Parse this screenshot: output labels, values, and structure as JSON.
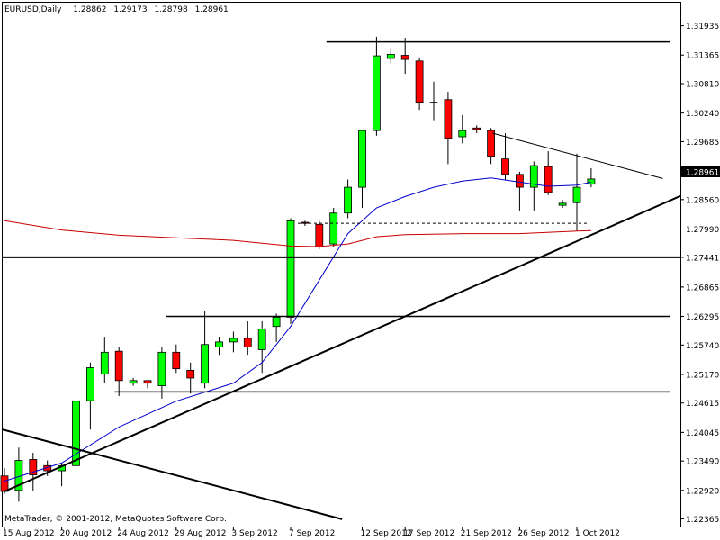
{
  "header": {
    "symbol": "EURUSD,Daily",
    "open": "1.28862",
    "high": "1.29173",
    "low": "1.28798",
    "close": "1.28961"
  },
  "watermark": "MetaTrader, © 2001-2012, MetaQuotes Software Corp.",
  "current_price_label": "1.28961",
  "colors": {
    "bull": "#00ff00",
    "bear": "#ff0000",
    "ma_fast": "#0000cc",
    "ma_slow": "#cc0000",
    "lines": "#000000",
    "background": "#ffffff"
  },
  "chart_data": {
    "type": "candlestick",
    "ylim": [
      1.2234,
      1.3212
    ],
    "y_ticks": [
      "1.31935",
      "1.31365",
      "1.30810",
      "1.30240",
      "1.29685",
      "1.29115",
      "1.28560",
      "1.27990",
      "1.27441",
      "1.26865",
      "1.26295",
      "1.25740",
      "1.25170",
      "1.24615",
      "1.24045",
      "1.23490",
      "1.22920",
      "1.22365"
    ],
    "x_tick_labels": [
      {
        "index": 0,
        "label": "15 Aug 2012"
      },
      {
        "index": 4,
        "label": "20 Aug 2012"
      },
      {
        "index": 8,
        "label": "24 Aug 2012"
      },
      {
        "index": 12,
        "label": "29 Aug 2012"
      },
      {
        "index": 16,
        "label": "3 Sep 2012"
      },
      {
        "index": 20,
        "label": "7 Sep 2012"
      },
      {
        "index": 25,
        "label": "12 Sep 2012"
      },
      {
        "index": 28,
        "label": "17 Sep 2012"
      },
      {
        "index": 32,
        "label": "21 Sep 2012"
      },
      {
        "index": 36,
        "label": "26 Sep 2012"
      },
      {
        "index": 40,
        "label": "1 Oct 2012"
      }
    ],
    "candles": [
      {
        "o": 1.232,
        "h": 1.2335,
        "l": 1.2285,
        "c": 1.229
      },
      {
        "o": 1.2292,
        "h": 1.2375,
        "l": 1.227,
        "c": 1.235
      },
      {
        "o": 1.2352,
        "h": 1.2365,
        "l": 1.229,
        "c": 1.2322
      },
      {
        "o": 1.234,
        "h": 1.235,
        "l": 1.232,
        "c": 1.233
      },
      {
        "o": 1.233,
        "h": 1.2345,
        "l": 1.23,
        "c": 1.234
      },
      {
        "o": 1.234,
        "h": 1.247,
        "l": 1.233,
        "c": 1.2465
      },
      {
        "o": 1.2466,
        "h": 1.254,
        "l": 1.241,
        "c": 1.253
      },
      {
        "o": 1.2518,
        "h": 1.259,
        "l": 1.25,
        "c": 1.256
      },
      {
        "o": 1.2562,
        "h": 1.257,
        "l": 1.2475,
        "c": 1.2505
      },
      {
        "o": 1.25,
        "h": 1.251,
        "l": 1.2495,
        "c": 1.2505
      },
      {
        "o": 1.2505,
        "h": 1.2505,
        "l": 1.249,
        "c": 1.25
      },
      {
        "o": 1.2495,
        "h": 1.257,
        "l": 1.247,
        "c": 1.256
      },
      {
        "o": 1.256,
        "h": 1.2575,
        "l": 1.252,
        "c": 1.2528
      },
      {
        "o": 1.2525,
        "h": 1.254,
        "l": 1.248,
        "c": 1.251
      },
      {
        "o": 1.25,
        "h": 1.264,
        "l": 1.249,
        "c": 1.2575
      },
      {
        "o": 1.257,
        "h": 1.259,
        "l": 1.2555,
        "c": 1.258
      },
      {
        "o": 1.258,
        "h": 1.26,
        "l": 1.256,
        "c": 1.2587
      },
      {
        "o": 1.2587,
        "h": 1.262,
        "l": 1.2555,
        "c": 1.257
      },
      {
        "o": 1.2565,
        "h": 1.262,
        "l": 1.252,
        "c": 1.2605
      },
      {
        "o": 1.261,
        "h": 1.2635,
        "l": 1.258,
        "c": 1.2628
      },
      {
        "o": 1.2628,
        "h": 1.282,
        "l": 1.2615,
        "c": 1.2815
      },
      {
        "o": 1.2812,
        "h": 1.2815,
        "l": 1.2805,
        "c": 1.281
      },
      {
        "o": 1.2808,
        "h": 1.2815,
        "l": 1.276,
        "c": 1.2765
      },
      {
        "o": 1.277,
        "h": 1.284,
        "l": 1.2765,
        "c": 1.283
      },
      {
        "o": 1.283,
        "h": 1.2895,
        "l": 1.282,
        "c": 1.288
      },
      {
        "o": 1.288,
        "h": 1.299,
        "l": 1.284,
        "c": 1.299
      },
      {
        "o": 1.299,
        "h": 1.3172,
        "l": 1.298,
        "c": 1.3135
      },
      {
        "o": 1.313,
        "h": 1.315,
        "l": 1.312,
        "c": 1.3138
      },
      {
        "o": 1.3136,
        "h": 1.317,
        "l": 1.31,
        "c": 1.3128
      },
      {
        "o": 1.3125,
        "h": 1.313,
        "l": 1.303,
        "c": 1.3045
      },
      {
        "o": 1.3045,
        "h": 1.3085,
        "l": 1.301,
        "c": 1.3045
      },
      {
        "o": 1.305,
        "h": 1.3065,
        "l": 1.2925,
        "c": 1.2975
      },
      {
        "o": 1.2978,
        "h": 1.302,
        "l": 1.2965,
        "c": 1.299
      },
      {
        "o": 1.2995,
        "h": 1.3,
        "l": 1.2985,
        "c": 1.2992
      },
      {
        "o": 1.299,
        "h": 1.2995,
        "l": 1.2925,
        "c": 1.294
      },
      {
        "o": 1.2935,
        "h": 1.2985,
        "l": 1.2895,
        "c": 1.2905
      },
      {
        "o": 1.2905,
        "h": 1.291,
        "l": 1.2835,
        "c": 1.288
      },
      {
        "o": 1.288,
        "h": 1.293,
        "l": 1.2835,
        "c": 1.2922
      },
      {
        "o": 1.292,
        "h": 1.295,
        "l": 1.2865,
        "c": 1.287
      },
      {
        "o": 1.2845,
        "h": 1.2855,
        "l": 1.284,
        "c": 1.2849
      },
      {
        "o": 1.285,
        "h": 1.2945,
        "l": 1.2795,
        "c": 1.288
      },
      {
        "o": 1.2886,
        "h": 1.2917,
        "l": 1.288,
        "c": 1.2896
      }
    ],
    "moving_average_fast": [
      [
        0,
        1.231
      ],
      [
        4,
        1.2345
      ],
      [
        8,
        1.2415
      ],
      [
        12,
        1.2465
      ],
      [
        16,
        1.25
      ],
      [
        18,
        1.254
      ],
      [
        20,
        1.261
      ],
      [
        22,
        1.27
      ],
      [
        24,
        1.279
      ],
      [
        26,
        1.284
      ],
      [
        28,
        1.2862
      ],
      [
        30,
        1.288
      ],
      [
        32,
        1.2892
      ],
      [
        34,
        1.2898
      ],
      [
        36,
        1.289
      ],
      [
        38,
        1.2882
      ],
      [
        40,
        1.2884
      ],
      [
        41,
        1.289
      ]
    ],
    "moving_average_slow": [
      [
        0,
        1.2815
      ],
      [
        4,
        1.2797
      ],
      [
        8,
        1.2787
      ],
      [
        12,
        1.2782
      ],
      [
        16,
        1.2777
      ],
      [
        20,
        1.2766
      ],
      [
        22,
        1.2765
      ],
      [
        24,
        1.277
      ],
      [
        26,
        1.2784
      ],
      [
        28,
        1.2788
      ],
      [
        32,
        1.279
      ],
      [
        36,
        1.279
      ],
      [
        40,
        1.2795
      ],
      [
        41,
        1.2796
      ]
    ],
    "trendlines": [
      {
        "name": "support-trendline",
        "x1": 0,
        "y1": 1.229,
        "x2": 48,
        "y2": 1.2863
      },
      {
        "name": "resistance-trendline",
        "x1": 34.1,
        "y1": 1.2985,
        "x2": 46,
        "y2": 1.2897
      },
      {
        "name": "old-downtrend-line",
        "x1": -0.4,
        "y1": 1.241,
        "x2": 23.6,
        "y2": 1.2236
      }
    ],
    "horizontal_lines": [
      {
        "name": "top-resistance-line",
        "x1": 22.5,
        "x2": 46.5,
        "y": 1.3162
      },
      {
        "name": "mid-support-line",
        "x1": 11.3,
        "x2": 46.5,
        "y": 1.26295
      },
      {
        "name": "low-support-line",
        "x1": 7.7,
        "x2": 46.5,
        "y": 1.2483
      },
      {
        "name": "breakout-dashed-line",
        "x1": 20.5,
        "x2": 40.8,
        "y": 1.281,
        "dashed": true
      }
    ],
    "full_width_lines": [
      {
        "name": "level-line-127441",
        "y": 1.27441
      }
    ]
  }
}
